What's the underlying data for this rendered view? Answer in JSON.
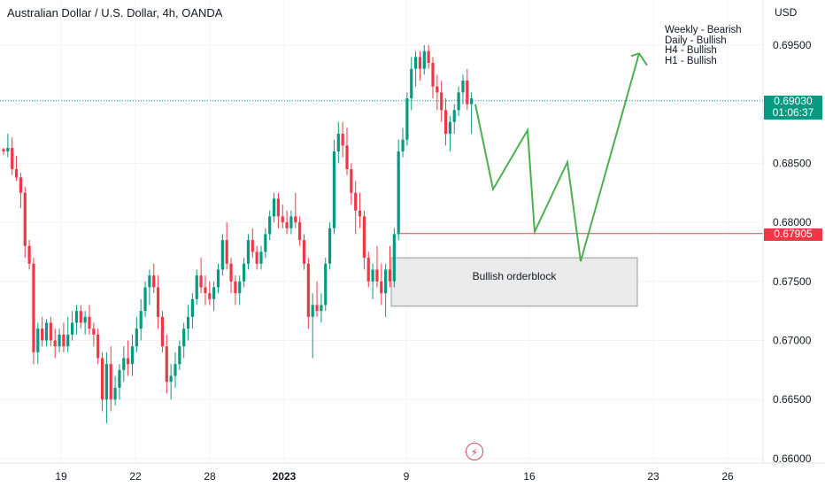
{
  "header": {
    "title": "Australian Dollar / U.S. Dollar, 4h, OANDA",
    "currency": "USD"
  },
  "price_tags": [
    {
      "value": "0.69030",
      "timer": "01:06:37",
      "color": "#089981"
    },
    {
      "value": "0.67905",
      "color": "#f23645"
    }
  ],
  "annotations": {
    "bias": [
      "Weekly - Bearish",
      "Daily - Bullish",
      "H4 - Bullish",
      "H1 - Bullish"
    ],
    "orderblock_label": "Bullish orderblock"
  },
  "colors": {
    "up": "#089981",
    "down": "#f23645",
    "projection": "#4caf50",
    "zone": "#e7e7e7"
  },
  "watermark_icon": "lightning-icon",
  "chart_data": {
    "type": "candlestick",
    "symbol": "AUDUSD",
    "timeframe": "4h",
    "ylim": [
      0.66,
      0.6975
    ],
    "y_ticks": [
      "0.69500",
      "0.69000",
      "0.68500",
      "0.68000",
      "0.67500",
      "0.67000",
      "0.66500",
      "0.66000"
    ],
    "x_ticks": [
      "19",
      "22",
      "28",
      "2023",
      "9",
      "16",
      "23",
      "26"
    ],
    "current_price": 0.6903,
    "support_level": 0.67905,
    "orderblock": {
      "from": 0.6729,
      "to": 0.677
    },
    "projection_path": [
      0.69,
      0.6828,
      0.6878,
      0.6792,
      0.6851,
      0.6767,
      0.6943,
      0.6933
    ],
    "candles": [
      [
        0.6862,
        0.6863,
        0.6857,
        0.686
      ],
      [
        0.686,
        0.6875,
        0.6855,
        0.6863
      ],
      [
        0.6863,
        0.6872,
        0.684,
        0.6845
      ],
      [
        0.6845,
        0.6856,
        0.6835,
        0.6838
      ],
      [
        0.6838,
        0.6842,
        0.6812,
        0.6825
      ],
      [
        0.6825,
        0.683,
        0.677,
        0.678
      ],
      [
        0.678,
        0.6785,
        0.676,
        0.6765
      ],
      [
        0.6765,
        0.677,
        0.668,
        0.669
      ],
      [
        0.669,
        0.6715,
        0.668,
        0.671
      ],
      [
        0.671,
        0.672,
        0.6695,
        0.67
      ],
      [
        0.67,
        0.6718,
        0.6695,
        0.6715
      ],
      [
        0.6715,
        0.672,
        0.6695,
        0.67
      ],
      [
        0.67,
        0.671,
        0.6685,
        0.6695
      ],
      [
        0.6695,
        0.671,
        0.669,
        0.6705
      ],
      [
        0.6705,
        0.6715,
        0.669,
        0.6695
      ],
      [
        0.6695,
        0.672,
        0.669,
        0.6705
      ],
      [
        0.6705,
        0.6725,
        0.67,
        0.6715
      ],
      [
        0.6715,
        0.673,
        0.6705,
        0.6725
      ],
      [
        0.6725,
        0.673,
        0.671,
        0.6715
      ],
      [
        0.6715,
        0.6725,
        0.6705,
        0.672
      ],
      [
        0.672,
        0.673,
        0.6705,
        0.671
      ],
      [
        0.671,
        0.6715,
        0.6695,
        0.6705
      ],
      [
        0.6705,
        0.671,
        0.668,
        0.6685
      ],
      [
        0.6685,
        0.669,
        0.664,
        0.665
      ],
      [
        0.665,
        0.669,
        0.663,
        0.668
      ],
      [
        0.668,
        0.6695,
        0.664,
        0.665
      ],
      [
        0.665,
        0.667,
        0.6645,
        0.666
      ],
      [
        0.666,
        0.668,
        0.665,
        0.6675
      ],
      [
        0.6675,
        0.6695,
        0.6665,
        0.6685
      ],
      [
        0.6685,
        0.67,
        0.667,
        0.668
      ],
      [
        0.668,
        0.6705,
        0.667,
        0.6695
      ],
      [
        0.6695,
        0.672,
        0.669,
        0.671
      ],
      [
        0.671,
        0.6735,
        0.67,
        0.6725
      ],
      [
        0.6725,
        0.675,
        0.672,
        0.6745
      ],
      [
        0.6745,
        0.676,
        0.673,
        0.6755
      ],
      [
        0.6755,
        0.6765,
        0.674,
        0.6745
      ],
      [
        0.6745,
        0.6755,
        0.671,
        0.672
      ],
      [
        0.672,
        0.6725,
        0.669,
        0.6695
      ],
      [
        0.6695,
        0.6705,
        0.6655,
        0.6665
      ],
      [
        0.6665,
        0.668,
        0.665,
        0.667
      ],
      [
        0.667,
        0.669,
        0.666,
        0.668
      ],
      [
        0.668,
        0.67,
        0.6675,
        0.6695
      ],
      [
        0.6695,
        0.6715,
        0.6685,
        0.671
      ],
      [
        0.671,
        0.673,
        0.67,
        0.672
      ],
      [
        0.672,
        0.674,
        0.671,
        0.6735
      ],
      [
        0.6735,
        0.676,
        0.673,
        0.6755
      ],
      [
        0.6755,
        0.677,
        0.674,
        0.6745
      ],
      [
        0.6745,
        0.6755,
        0.673,
        0.674
      ],
      [
        0.674,
        0.675,
        0.673,
        0.6735
      ],
      [
        0.6735,
        0.675,
        0.6725,
        0.6745
      ],
      [
        0.6745,
        0.6765,
        0.674,
        0.676
      ],
      [
        0.676,
        0.679,
        0.6755,
        0.6785
      ],
      [
        0.6785,
        0.68,
        0.676,
        0.6765
      ],
      [
        0.6765,
        0.677,
        0.674,
        0.675
      ],
      [
        0.675,
        0.6755,
        0.673,
        0.674
      ],
      [
        0.674,
        0.6755,
        0.673,
        0.675
      ],
      [
        0.675,
        0.677,
        0.6745,
        0.6765
      ],
      [
        0.6765,
        0.679,
        0.676,
        0.6785
      ],
      [
        0.6785,
        0.6795,
        0.677,
        0.6775
      ],
      [
        0.6775,
        0.678,
        0.676,
        0.6765
      ],
      [
        0.6765,
        0.678,
        0.676,
        0.6775
      ],
      [
        0.6775,
        0.6795,
        0.677,
        0.679
      ],
      [
        0.679,
        0.681,
        0.6785,
        0.6805
      ],
      [
        0.6805,
        0.6825,
        0.68,
        0.682
      ],
      [
        0.682,
        0.6825,
        0.6795,
        0.6805
      ],
      [
        0.6805,
        0.6815,
        0.6795,
        0.68
      ],
      [
        0.68,
        0.681,
        0.679,
        0.6795
      ],
      [
        0.6795,
        0.681,
        0.679,
        0.6805
      ],
      [
        0.6805,
        0.6825,
        0.6795,
        0.68
      ],
      [
        0.68,
        0.6805,
        0.678,
        0.6785
      ],
      [
        0.6785,
        0.679,
        0.676,
        0.6765
      ],
      [
        0.6765,
        0.677,
        0.671,
        0.672
      ],
      [
        0.672,
        0.674,
        0.6685,
        0.673
      ],
      [
        0.673,
        0.675,
        0.672,
        0.6725
      ],
      [
        0.6725,
        0.674,
        0.6715,
        0.673
      ],
      [
        0.673,
        0.677,
        0.6725,
        0.6765
      ],
      [
        0.6765,
        0.68,
        0.676,
        0.6795
      ],
      [
        0.6795,
        0.687,
        0.679,
        0.686
      ],
      [
        0.686,
        0.6885,
        0.685,
        0.6875
      ],
      [
        0.6875,
        0.6885,
        0.6855,
        0.6865
      ],
      [
        0.6865,
        0.688,
        0.684,
        0.6845
      ],
      [
        0.6845,
        0.685,
        0.6815,
        0.6825
      ],
      [
        0.6825,
        0.6835,
        0.679,
        0.681
      ],
      [
        0.681,
        0.6825,
        0.6795,
        0.6805
      ],
      [
        0.6805,
        0.681,
        0.676,
        0.677
      ],
      [
        0.677,
        0.6775,
        0.6745,
        0.675
      ],
      [
        0.675,
        0.6765,
        0.6735,
        0.676
      ],
      [
        0.676,
        0.678,
        0.6745,
        0.675
      ],
      [
        0.675,
        0.6765,
        0.673,
        0.674
      ],
      [
        0.674,
        0.6765,
        0.672,
        0.676
      ],
      [
        0.676,
        0.678,
        0.6745,
        0.675
      ],
      [
        0.675,
        0.6795,
        0.6745,
        0.679
      ],
      [
        0.679,
        0.687,
        0.6785,
        0.686
      ],
      [
        0.686,
        0.688,
        0.6855,
        0.687
      ],
      [
        0.687,
        0.691,
        0.6865,
        0.6905
      ],
      [
        0.6905,
        0.694,
        0.6895,
        0.693
      ],
      [
        0.693,
        0.6945,
        0.6915,
        0.694
      ],
      [
        0.694,
        0.6945,
        0.692,
        0.693
      ],
      [
        0.693,
        0.695,
        0.6925,
        0.6945
      ],
      [
        0.6945,
        0.695,
        0.693,
        0.6935
      ],
      [
        0.6935,
        0.694,
        0.6905,
        0.6915
      ],
      [
        0.6915,
        0.6925,
        0.6895,
        0.691
      ],
      [
        0.691,
        0.692,
        0.6885,
        0.6895
      ],
      [
        0.6895,
        0.6905,
        0.6865,
        0.6875
      ],
      [
        0.6875,
        0.689,
        0.686,
        0.6885
      ],
      [
        0.6885,
        0.69,
        0.6875,
        0.6895
      ],
      [
        0.6895,
        0.6915,
        0.689,
        0.691
      ],
      [
        0.691,
        0.6925,
        0.69,
        0.692
      ],
      [
        0.692,
        0.693,
        0.6895,
        0.69
      ],
      [
        0.69,
        0.691,
        0.6875,
        0.6905
      ]
    ]
  }
}
